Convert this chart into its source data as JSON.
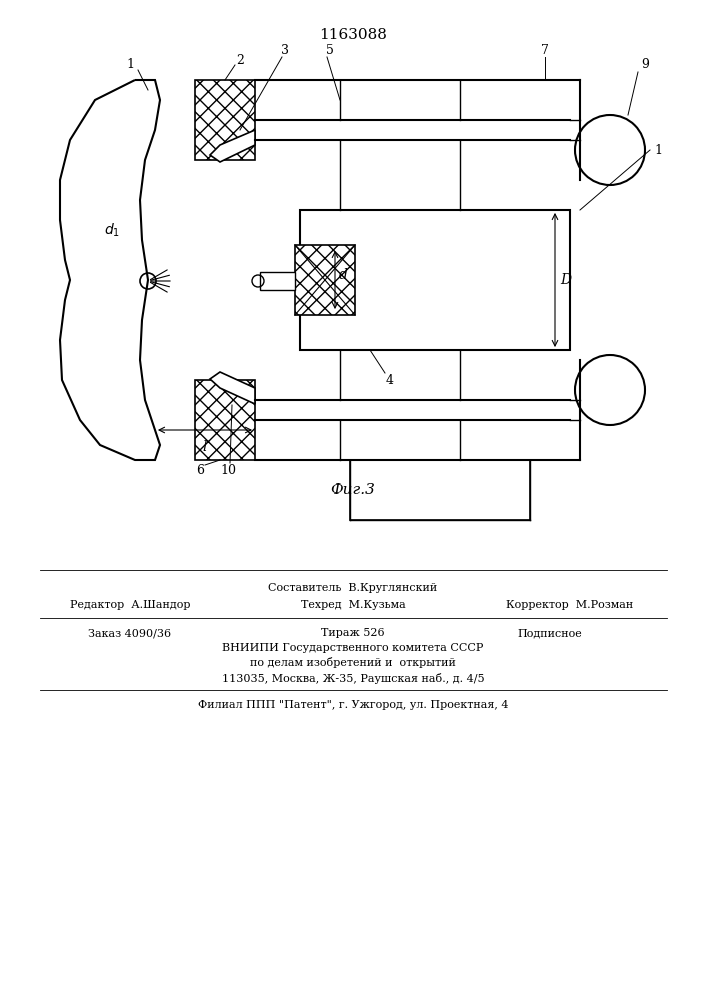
{
  "title": "1163088",
  "fig_label": "Фиг.3",
  "background_color": "#ffffff",
  "line_color": "#000000",
  "hatch_color": "#000000",
  "labels": {
    "1": [
      1,
      9
    ],
    "2": [
      2
    ],
    "3": [
      3
    ],
    "4": [
      4
    ],
    "5": [
      5
    ],
    "6": [
      6
    ],
    "7": [
      7
    ],
    "9": [
      9
    ],
    "10": [
      10
    ],
    "d1": "d₁",
    "d": "d",
    "D": "D",
    "l": "l"
  },
  "footer_lines": [
    "Составитель  В.Круглянский",
    "Редактор  А.Шандор        Техред  М.Кузьма           Корректор  М.Розман",
    "Заказ 4090/36          Тираж 526                Подписное",
    "ВНИИПИ Государственного комитета СССР",
    "по делам изобретений и  открытий",
    "113035, Москва, Ж-35, Раушская наб., д. 4/5",
    "Филиал ППП \"Патент\", г. Ужгород, ул. Проектная, 4"
  ]
}
